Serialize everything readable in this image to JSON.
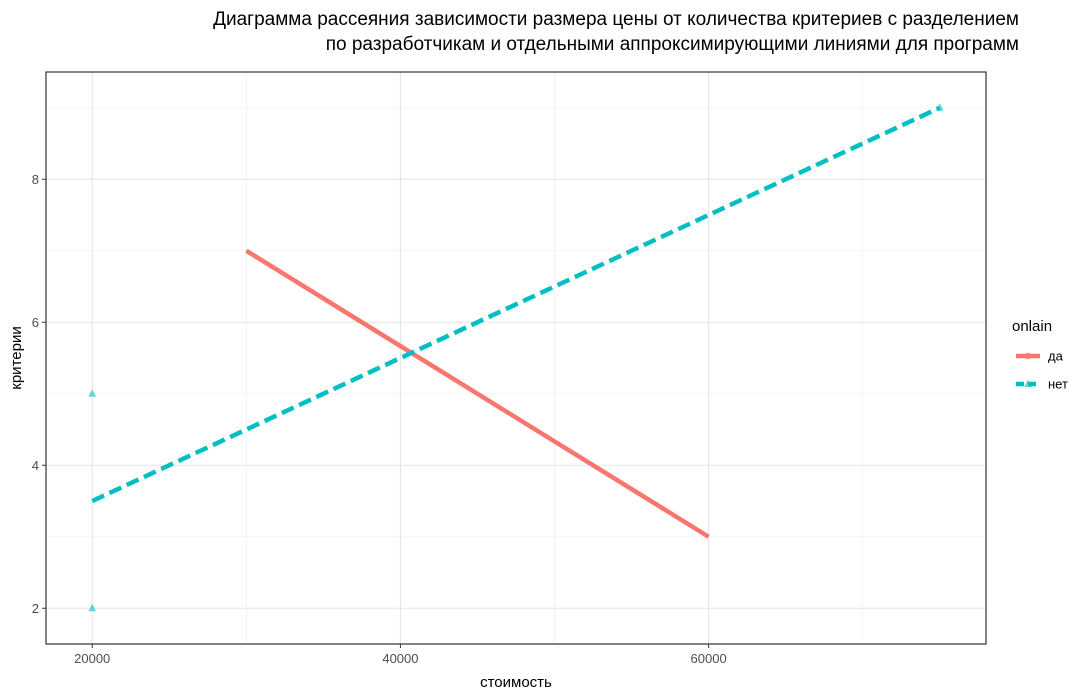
{
  "chart_data": {
    "type": "scatter",
    "title_line1": "Диаграмма рассеяния зависимости размера цены от количества критериев с разделением",
    "title_line2": "по разработчикам и отдельными аппроксимирующими линиями для программ",
    "xlabel": "стоимость",
    "ylabel": "критерии",
    "xlim": [
      17000,
      78000
    ],
    "ylim": [
      1.5,
      9.5
    ],
    "x_ticks": [
      20000,
      40000,
      60000
    ],
    "y_ticks": [
      2,
      4,
      6,
      8
    ],
    "grid": true,
    "legend": {
      "title": "onlain",
      "position": "right"
    },
    "series": [
      {
        "name": "да",
        "color": "#F8766D",
        "line_style": "solid",
        "marker": "circle",
        "points": [],
        "fit_line": [
          [
            30000,
            7.0
          ],
          [
            60000,
            3.0
          ]
        ]
      },
      {
        "name": "нет",
        "color": "#00BFC4",
        "line_style": "dashed",
        "marker": "triangle",
        "points": [
          [
            20000,
            5
          ],
          [
            20000,
            2
          ],
          [
            75000,
            9
          ]
        ],
        "fit_line": [
          [
            20000,
            3.5
          ],
          [
            75000,
            9.0
          ]
        ]
      }
    ]
  }
}
